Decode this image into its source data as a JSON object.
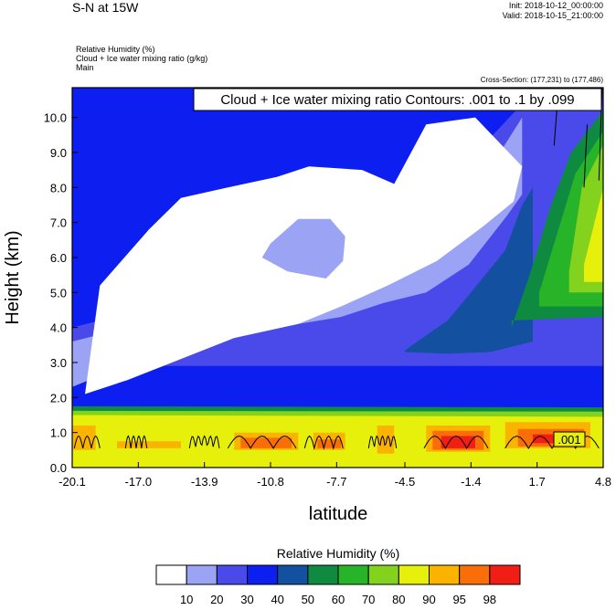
{
  "title": "S-N at 15W",
  "init": "Init: 2018-10-12_00:00:00",
  "valid": "Valid: 2018-10-15_21:00:00",
  "fields": [
    "Relative Humidity   (%)",
    "Cloud + Ice water mixing ratio   (g/kg)",
    "Main"
  ],
  "cross_section": "Cross-Section: (177,231) to (177,486)",
  "contour_note": "Cloud + Ice water mixing ratio Contours: .001 to .1 by .099",
  "contour_label": ".001",
  "chart_data": {
    "type": "heatmap",
    "xlabel": "latitude",
    "ylabel": "Height (km)",
    "x_ticks": [
      "-20.1",
      "-17.0",
      "-13.9",
      "-10.8",
      "-7.7",
      "-4.5",
      "-1.4",
      "1.7",
      "4.8"
    ],
    "y_ticks": [
      "0.0",
      "1.0",
      "2.0",
      "3.0",
      "4.0",
      "5.0",
      "6.0",
      "7.0",
      "8.0",
      "9.0",
      "10.0"
    ],
    "xlim": [
      -20.1,
      4.8
    ],
    "ylim": [
      0.0,
      10.85
    ],
    "colorbar": {
      "title": "Relative Humidity  (%)",
      "labels": [
        "10",
        "20",
        "30",
        "40",
        "50",
        "60",
        "70",
        "80",
        "90",
        "95",
        "98"
      ],
      "colors": [
        "#ffffff",
        "#9ba3f4",
        "#4a4aeb",
        "#0c1ef0",
        "#1450a0",
        "#0f8a41",
        "#28b428",
        "#82d21e",
        "#e6f00a",
        "#fab400",
        "#fa6e0a",
        "#f01e14"
      ]
    },
    "areas": [
      {
        "color": "#0c1ef0",
        "x": [
          -20.1,
          4.8,
          4.8,
          -20.1
        ],
        "y": [
          0.0,
          0.0,
          10.85,
          10.85
        ]
      },
      {
        "color": "#4a4aeb",
        "x": [
          -20.1,
          -17.5,
          -15,
          -13,
          -11.5,
          -9.5,
          -7.5,
          -5.5,
          -4,
          -3.2,
          -1.9,
          1.7,
          4.8,
          4.8,
          -20.1
        ],
        "y": [
          4.0,
          4.4,
          4.8,
          5.2,
          5.5,
          5.9,
          6.3,
          6.9,
          7.4,
          7.8,
          8.5,
          10.85,
          10.85,
          2.9,
          2.9
        ]
      },
      {
        "color": "#9ba3f4",
        "x": [
          -20.1,
          -17.5,
          -15,
          -12,
          -9.5,
          -7.5,
          -5.5,
          -3.5,
          -2.4,
          -1.7,
          1.0,
          1.0,
          0.3,
          -1.5,
          -3.5,
          -5.5,
          -7.5,
          -10.5,
          -13.5,
          -16,
          -18.5,
          -20.1
        ],
        "y": [
          3.6,
          4.0,
          4.5,
          5.0,
          5.3,
          5.6,
          6.0,
          6.5,
          7.0,
          7.4,
          10.0,
          7.8,
          7.2,
          5.8,
          5.0,
          4.7,
          4.3,
          4.0,
          3.6,
          3.1,
          2.7,
          2.3
        ]
      },
      {
        "color": "#ffffff",
        "x": [
          -18.8,
          -16.5,
          -15,
          -12.8,
          -10.5,
          -9,
          -6.5,
          -5,
          -3.5,
          -1.2,
          1.0,
          0.6,
          -0.8,
          -3,
          -5.3,
          -7.5,
          -9.5,
          -12.5,
          -15,
          -17.5,
          -19.5
        ],
        "y": [
          5.2,
          6.8,
          7.7,
          8.0,
          8.3,
          8.6,
          8.5,
          8.1,
          9.8,
          10.0,
          8.6,
          7.6,
          6.9,
          5.9,
          5.2,
          4.6,
          4.1,
          3.7,
          3.1,
          2.5,
          2.1
        ]
      },
      {
        "color": "#9ba3f4",
        "x": [
          -10.8,
          -9.5,
          -8,
          -7.3,
          -7.4,
          -8.2,
          -10,
          -11.2
        ],
        "y": [
          6.4,
          7.1,
          7.1,
          6.6,
          5.9,
          5.4,
          5.6,
          6.0
        ]
      },
      {
        "color": "#1450a0",
        "x": [
          -4.5,
          -2.5,
          -1.4,
          0.2,
          1.0,
          1.5,
          1.5,
          -0.5,
          -2.5,
          -4.5
        ],
        "y": [
          3.35,
          4.2,
          5.0,
          6.2,
          7.5,
          8.0,
          3.6,
          3.3,
          3.25,
          3.3
        ]
      },
      {
        "color": "#0f8a41",
        "x": [
          0.5,
          1.4,
          2.3,
          3.3,
          4.8,
          4.8,
          0.5
        ],
        "y": [
          4.0,
          5.6,
          7.4,
          9.0,
          10.2,
          4.3,
          4.2
        ]
      },
      {
        "color": "#28b428",
        "x": [
          1.8,
          2.6,
          3.5,
          4.8,
          4.8,
          1.8
        ],
        "y": [
          5.0,
          6.6,
          8.4,
          9.6,
          4.6,
          4.6
        ]
      },
      {
        "color": "#82d21e",
        "x": [
          3.2,
          3.8,
          4.8,
          4.8,
          3.2
        ],
        "y": [
          5.6,
          8.0,
          9.2,
          5.0,
          5.0
        ]
      },
      {
        "color": "#e6f00a",
        "x": [
          3.9,
          4.8,
          4.8,
          3.9
        ],
        "y": [
          5.8,
          8.0,
          5.3,
          5.3
        ]
      },
      {
        "color": "#0f8a41",
        "x": [
          -20.1,
          4.8,
          4.8,
          -20.1
        ],
        "y": [
          0.0,
          0.0,
          1.72,
          1.75
        ]
      },
      {
        "color": "#82d21e",
        "x": [
          -20.1,
          4.8,
          4.8,
          -20.1
        ],
        "y": [
          0.0,
          0.0,
          1.6,
          1.62
        ]
      },
      {
        "color": "#e6f00a",
        "x": [
          -20.1,
          4.8,
          4.8,
          -20.1
        ],
        "y": [
          0.0,
          0.0,
          1.45,
          1.5
        ]
      },
      {
        "color": "#fab400",
        "x": [
          -20.1,
          -19.0,
          -19.0,
          -20.1
        ],
        "y": [
          0.5,
          0.5,
          1.2,
          1.2
        ]
      },
      {
        "color": "#fab400",
        "x": [
          -18.0,
          -15.0,
          -15.0,
          -18.0
        ],
        "y": [
          0.55,
          0.55,
          0.75,
          0.75
        ]
      },
      {
        "color": "#fab400",
        "x": [
          -12.5,
          -9.5,
          -9.5,
          -12.5
        ],
        "y": [
          0.5,
          0.5,
          1.0,
          1.0
        ]
      },
      {
        "color": "#fa6e0a",
        "x": [
          -12.2,
          -9.8,
          -9.8,
          -12.2
        ],
        "y": [
          0.55,
          0.55,
          0.85,
          0.85
        ]
      },
      {
        "color": "#fab400",
        "x": [
          -8.8,
          -7.3,
          -7.3,
          -8.8
        ],
        "y": [
          0.5,
          0.5,
          1.0,
          1.0
        ]
      },
      {
        "color": "#fa6e0a",
        "x": [
          -8.6,
          -7.5,
          -7.5,
          -8.6
        ],
        "y": [
          0.55,
          0.55,
          0.8,
          0.8
        ]
      },
      {
        "color": "#fab400",
        "x": [
          -5.8,
          -5.0,
          -5.0,
          -5.8
        ],
        "y": [
          0.4,
          0.4,
          1.2,
          1.2
        ]
      },
      {
        "color": "#fab400",
        "x": [
          -3.5,
          -0.5,
          -0.5,
          -3.5
        ],
        "y": [
          0.45,
          0.45,
          1.2,
          1.2
        ]
      },
      {
        "color": "#fa6e0a",
        "x": [
          -3.2,
          -0.8,
          -0.8,
          -3.2
        ],
        "y": [
          0.5,
          0.5,
          1.05,
          1.05
        ]
      },
      {
        "color": "#f01e14",
        "x": [
          -2.8,
          -1.2,
          -1.2,
          -2.8
        ],
        "y": [
          0.55,
          0.55,
          0.9,
          0.9
        ]
      },
      {
        "color": "#fab400",
        "x": [
          0.2,
          4.2,
          4.2,
          0.2
        ],
        "y": [
          0.55,
          0.55,
          1.3,
          1.3
        ]
      },
      {
        "color": "#fa6e0a",
        "x": [
          0.8,
          3.9,
          3.9,
          0.8
        ],
        "y": [
          0.6,
          0.6,
          1.1,
          1.1
        ]
      },
      {
        "color": "#f01e14",
        "x": [
          1.5,
          3.0,
          3.0,
          1.5
        ],
        "y": [
          0.7,
          0.7,
          0.95,
          0.95
        ]
      }
    ]
  }
}
